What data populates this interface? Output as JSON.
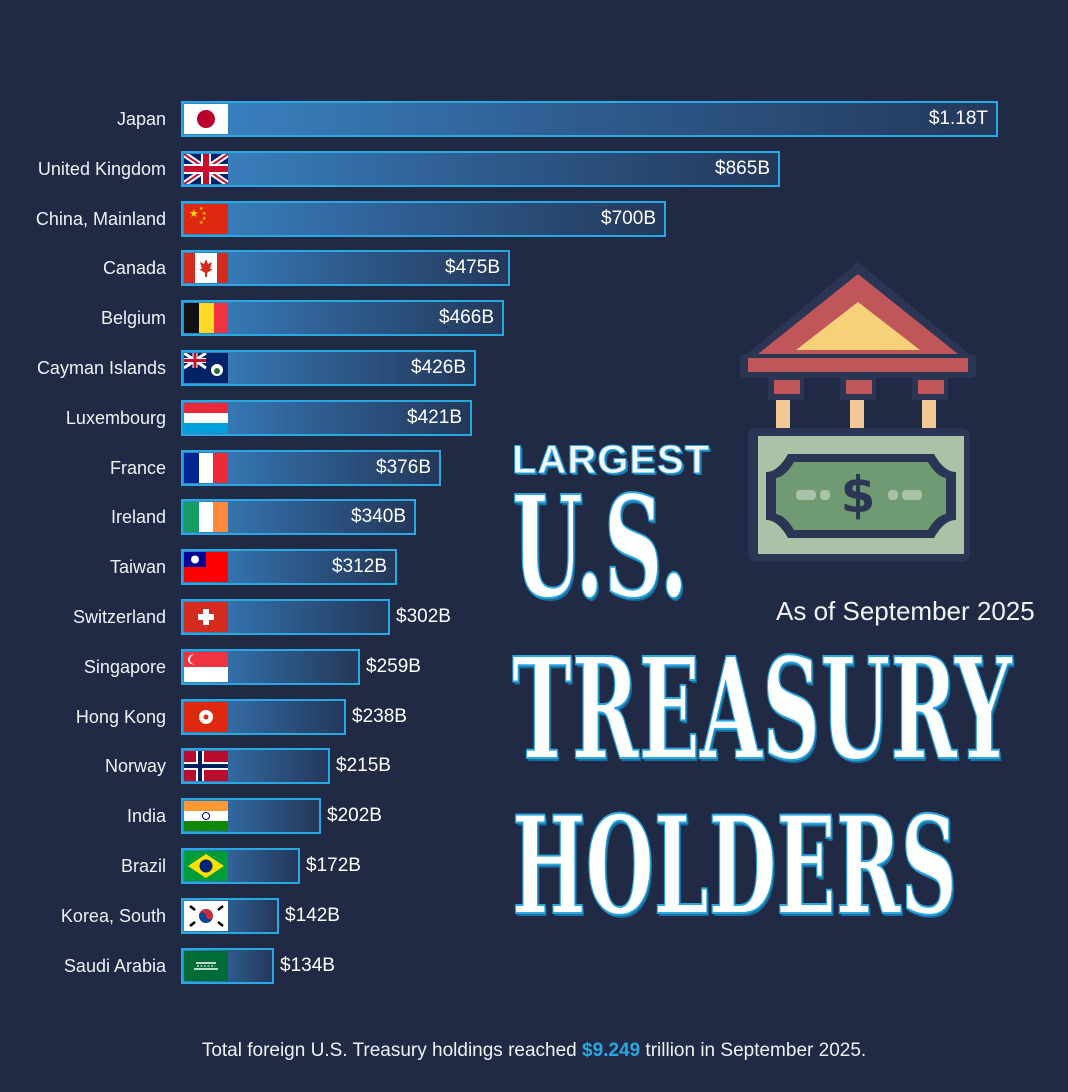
{
  "chart_data": {
    "type": "bar",
    "orientation": "horizontal",
    "title_parts": [
      "LARGEST",
      "U.S.",
      "TREASURY",
      "HOLDERS"
    ],
    "subtitle": "As of September 2025",
    "unit": "USD",
    "categories": [
      "Japan",
      "United Kingdom",
      "China, Mainland",
      "Canada",
      "Belgium",
      "Cayman Islands",
      "Luxembourg",
      "France",
      "Ireland",
      "Taiwan",
      "Switzerland",
      "Singapore",
      "Hong Kong",
      "Norway",
      "India",
      "Brazil",
      "Korea, South",
      "Saudi Arabia"
    ],
    "values": [
      1180,
      865,
      700,
      475,
      466,
      426,
      421,
      376,
      340,
      312,
      302,
      259,
      238,
      215,
      202,
      172,
      142,
      134
    ],
    "value_labels": [
      "$1.18T",
      "$865B",
      "$700B",
      "$475B",
      "$466B",
      "$426B",
      "$421B",
      "$376B",
      "$340B",
      "$312B",
      "$302B",
      "$259B",
      "$238B",
      "$215B",
      "$202B",
      "$172B",
      "$142B",
      "$134B"
    ],
    "flags": [
      "japan-flag-icon",
      "uk-flag-icon",
      "china-flag-icon",
      "canada-flag-icon",
      "belgium-flag-icon",
      "cayman-flag-icon",
      "luxembourg-flag-icon",
      "france-flag-icon",
      "ireland-flag-icon",
      "taiwan-flag-icon",
      "switzerland-flag-icon",
      "singapore-flag-icon",
      "hongkong-flag-icon",
      "norway-flag-icon",
      "india-flag-icon",
      "brazil-flag-icon",
      "korea-flag-icon",
      "saudi-flag-icon"
    ],
    "xlabel": "",
    "ylabel": "",
    "xlim": [
      0,
      1180
    ],
    "grid": false,
    "legend": "none"
  },
  "footnote": {
    "before": "Total foreign U.S. Treasury holdings reached ",
    "highlight": "$9.249",
    "after": " trillion in September 2025."
  },
  "icons": {
    "illustration": "bank-money-icon"
  },
  "colors": {
    "background": "#212a45",
    "bar_border": "#27a9e3",
    "accent": "#2aa7e0",
    "text": "#eef1f6"
  }
}
